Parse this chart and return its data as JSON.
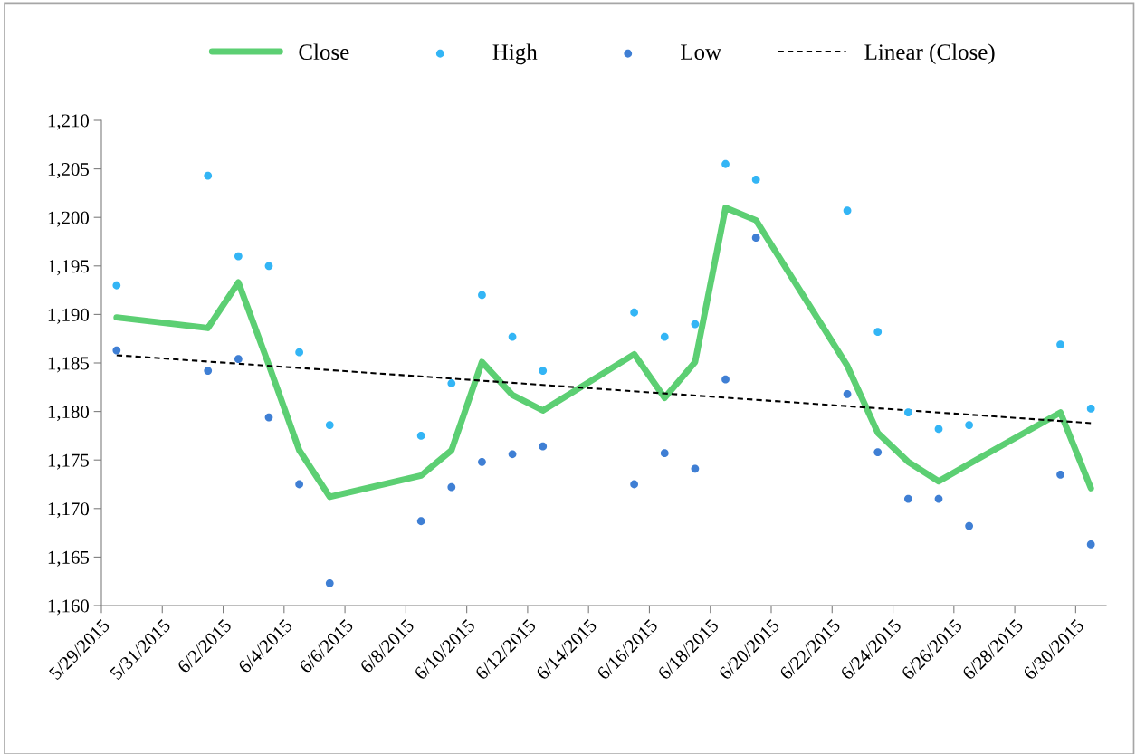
{
  "chart_data": {
    "type": "line",
    "x": [
      "2015-05-29",
      "2015-06-01",
      "2015-06-02",
      "2015-06-03",
      "2015-06-04",
      "2015-06-05",
      "2015-06-08",
      "2015-06-09",
      "2015-06-10",
      "2015-06-11",
      "2015-06-12",
      "2015-06-15",
      "2015-06-16",
      "2015-06-17",
      "2015-06-18",
      "2015-06-19",
      "2015-06-22",
      "2015-06-23",
      "2015-06-24",
      "2015-06-25",
      "2015-06-26",
      "2015-06-29",
      "2015-06-30"
    ],
    "series": [
      {
        "name": "Close",
        "color": "#5ccf73",
        "values": [
          1189.7,
          1188.6,
          1193.3,
          1184.8,
          1176.0,
          1171.2,
          1173.4,
          1176.0,
          1185.1,
          1181.7,
          1180.1,
          1185.9,
          1181.4,
          1185.1,
          1201.0,
          1199.7,
          1184.7,
          1177.8,
          1174.8,
          1172.8,
          1174.6,
          1179.9,
          1172.1
        ]
      },
      {
        "name": "High",
        "type": "scatter",
        "marker": "circle",
        "color": "#33b5f5",
        "values": [
          1193.0,
          1204.3,
          1196.0,
          1195.0,
          1186.1,
          1178.6,
          1177.5,
          1182.9,
          1192.0,
          1187.7,
          1184.2,
          1190.2,
          1187.7,
          1189.0,
          1205.5,
          1203.9,
          1200.7,
          1188.2,
          1179.9,
          1178.2,
          1178.6,
          1186.9,
          1180.3
        ]
      },
      {
        "name": "Low",
        "type": "scatter",
        "marker": "circle",
        "color": "#3f7fd4",
        "values": [
          1186.3,
          1184.2,
          1185.4,
          1179.4,
          1172.5,
          1162.3,
          1168.7,
          1172.2,
          1174.8,
          1175.6,
          1176.4,
          1172.5,
          1175.7,
          1174.1,
          1183.3,
          1197.9,
          1181.8,
          1175.8,
          1171.0,
          1171.0,
          1168.2,
          1173.5,
          1166.3
        ]
      },
      {
        "name": "Linear (Close)",
        "line_style": "dashed",
        "color": "#000000",
        "x": [
          "2015-05-29",
          "2015-06-30"
        ],
        "values": [
          1185.8,
          1178.8
        ]
      }
    ],
    "xlim": [
      "2015-05-28T12:00",
      "2015-06-30T12:00"
    ],
    "xticks": [
      {
        "value": "2015-05-28T12:00",
        "label": "5/29/2015"
      },
      {
        "value": "2015-05-30T12:00",
        "label": "5/31/2015"
      },
      {
        "value": "2015-06-01T12:00",
        "label": "6/2/2015"
      },
      {
        "value": "2015-06-03T12:00",
        "label": "6/4/2015"
      },
      {
        "value": "2015-06-05T12:00",
        "label": "6/6/2015"
      },
      {
        "value": "2015-06-07T12:00",
        "label": "6/8/2015"
      },
      {
        "value": "2015-06-09T12:00",
        "label": "6/10/2015"
      },
      {
        "value": "2015-06-11T12:00",
        "label": "6/12/2015"
      },
      {
        "value": "2015-06-13T12:00",
        "label": "6/14/2015"
      },
      {
        "value": "2015-06-15T12:00",
        "label": "6/16/2015"
      },
      {
        "value": "2015-06-17T12:00",
        "label": "6/18/2015"
      },
      {
        "value": "2015-06-19T12:00",
        "label": "6/20/2015"
      },
      {
        "value": "2015-06-21T12:00",
        "label": "6/22/2015"
      },
      {
        "value": "2015-06-23T12:00",
        "label": "6/24/2015"
      },
      {
        "value": "2015-06-25T12:00",
        "label": "6/26/2015"
      },
      {
        "value": "2015-06-27T12:00",
        "label": "6/28/2015"
      },
      {
        "value": "2015-06-29T12:00",
        "label": "6/30/2015"
      }
    ],
    "ylim": [
      1160,
      1210
    ],
    "yticks": [
      {
        "value": 1160,
        "label": "1,160"
      },
      {
        "value": 1165,
        "label": "1,165"
      },
      {
        "value": 1170,
        "label": "1,170"
      },
      {
        "value": 1175,
        "label": "1,175"
      },
      {
        "value": 1180,
        "label": "1,180"
      },
      {
        "value": 1185,
        "label": "1,185"
      },
      {
        "value": 1190,
        "label": "1,190"
      },
      {
        "value": 1195,
        "label": "1,195"
      },
      {
        "value": 1200,
        "label": "1,200"
      },
      {
        "value": 1205,
        "label": "1,205"
      },
      {
        "value": 1210,
        "label": "1,210"
      }
    ],
    "grid": false,
    "legend": "top"
  }
}
